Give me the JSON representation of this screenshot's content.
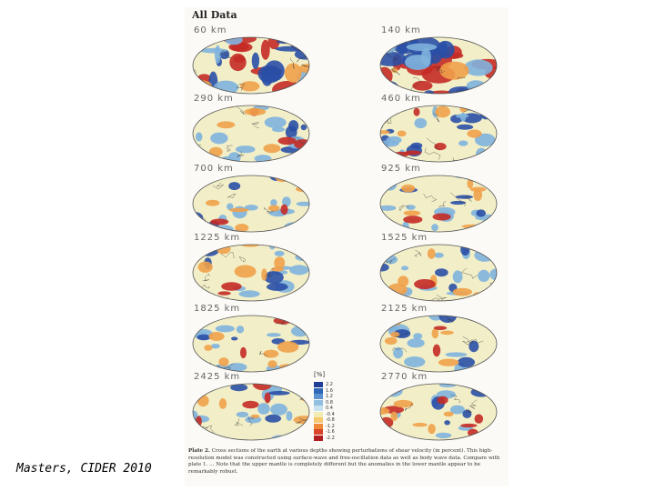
{
  "figure": {
    "title": "All Data",
    "panels": [
      {
        "depth": "60  km",
        "style": "strong"
      },
      {
        "depth": "140  km",
        "style": "strong"
      },
      {
        "depth": "290  km",
        "style": "medium"
      },
      {
        "depth": "460  km",
        "style": "medium"
      },
      {
        "depth": "700  km",
        "style": "weak"
      },
      {
        "depth": "925  km",
        "style": "weak"
      },
      {
        "depth": "1225  km",
        "style": "weak"
      },
      {
        "depth": "1525  km",
        "style": "weak"
      },
      {
        "depth": "1825  km",
        "style": "weak"
      },
      {
        "depth": "2125  km",
        "style": "weak"
      },
      {
        "depth": "2425  km",
        "style": "deep"
      },
      {
        "depth": "2770  km",
        "style": "deep"
      }
    ],
    "colorbar": {
      "title": "[%]",
      "ticks": [
        "2.2",
        "1.6",
        "1.2",
        "0.8",
        "0.4",
        "-0.4",
        "-0.8",
        "-1.2",
        "-1.6",
        "-2.2"
      ],
      "colors": [
        "#1f3f96",
        "#2f66b8",
        "#5b93cf",
        "#93c0e2",
        "#c9e2ef",
        "#f3ecb2",
        "#f6c86e",
        "#ee8a3a",
        "#d9452a",
        "#b11d20"
      ]
    },
    "caption": {
      "label": "Plate 2.",
      "text": "Cross sections of the earth at various depths showing perturbations of shear velocity (in percent). This high-resolution model was constructed using surface-wave and free-oscillation data as well as body wave data. Compare with plate 1. ... Note that the upper mantle is completely different but the anomalies in the lower mantle appear to be remarkably robust."
    }
  },
  "credit": "Masters, CIDER 2010",
  "palette": {
    "ocean_bg": "#d6e8ee",
    "neutral": "#f2efc8",
    "blue_dark": "#2a4fa6",
    "blue_light": "#7fb3dd",
    "red_dark": "#c42a25",
    "orange": "#f0a14a"
  }
}
